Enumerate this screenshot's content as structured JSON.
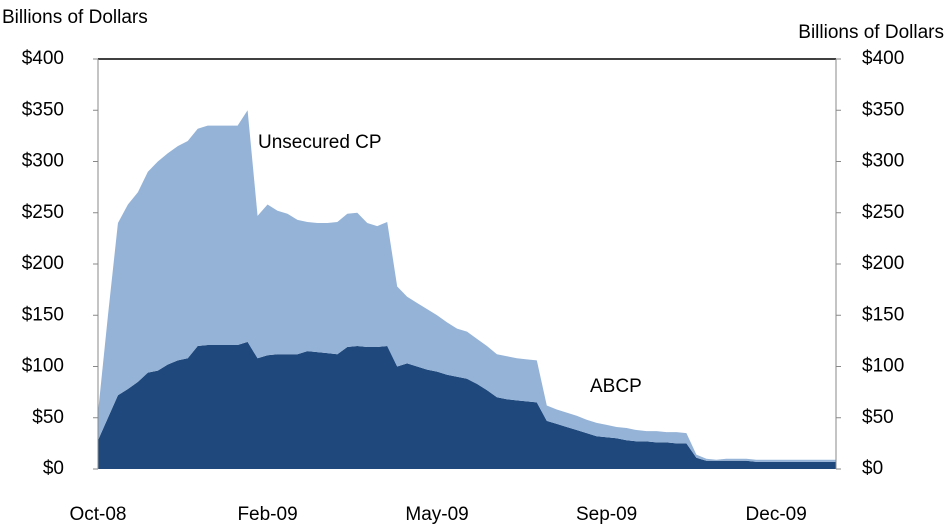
{
  "chart_data": {
    "type": "stacked-area",
    "ylabel": "Billions of Dollars",
    "y2label": "Billions of Dollars",
    "categories": [
      "Oct-08",
      null,
      null,
      null,
      null,
      null,
      null,
      null,
      null,
      null,
      null,
      null,
      null,
      null,
      null,
      null,
      null,
      "Feb-09",
      null,
      null,
      null,
      null,
      null,
      null,
      null,
      null,
      null,
      null,
      null,
      null,
      null,
      null,
      null,
      null,
      "May-09",
      null,
      null,
      null,
      null,
      null,
      null,
      null,
      null,
      null,
      null,
      null,
      null,
      null,
      null,
      null,
      null,
      "Sep-09",
      null,
      null,
      null,
      null,
      null,
      null,
      null,
      null,
      null,
      null,
      null,
      null,
      null,
      null,
      null,
      null,
      "Dec-09",
      null,
      null,
      null,
      null,
      null,
      null
    ],
    "series": [
      {
        "name": "ABCP",
        "color": "#1f497d",
        "label_color": "#1f497d",
        "values": [
          28,
          50,
          72,
          78,
          85,
          94,
          96,
          102,
          106,
          108,
          120,
          121,
          121,
          121,
          121,
          124,
          108,
          111,
          112,
          112,
          112,
          115,
          114,
          113,
          112,
          119,
          120,
          119,
          119,
          120,
          100,
          103,
          100,
          97,
          95,
          92,
          90,
          88,
          83,
          77,
          70,
          68,
          67,
          66,
          65,
          47,
          44,
          41,
          38,
          35,
          32,
          31,
          30,
          28,
          27,
          27,
          26,
          26,
          25,
          25,
          11,
          8,
          8,
          8,
          8,
          8,
          7,
          7,
          7,
          7,
          7,
          7,
          7,
          7,
          7
        ]
      },
      {
        "name": "Unsecured CP",
        "color": "#95b3d7",
        "label_color": "#95b3d7",
        "values": [
          27,
          100,
          168,
          180,
          185,
          196,
          204,
          206,
          209,
          212,
          212,
          214,
          214,
          214,
          214,
          226,
          139,
          147,
          140,
          137,
          131,
          126,
          126,
          127,
          129,
          130,
          130,
          121,
          118,
          121,
          78,
          65,
          62,
          59,
          55,
          51,
          47,
          46,
          44,
          43,
          42,
          42,
          41,
          41,
          41,
          15,
          14,
          14,
          14,
          13,
          13,
          12,
          11,
          12,
          11,
          10,
          11,
          10,
          11,
          10,
          3,
          2,
          1,
          2,
          2,
          2,
          2,
          2,
          2,
          2,
          2,
          2,
          2,
          2,
          2
        ]
      }
    ],
    "ylim": [
      0,
      400
    ],
    "yticks": [
      {
        "value": 0,
        "label": "$0"
      },
      {
        "value": 50,
        "label": "$50"
      },
      {
        "value": 100,
        "label": "$100"
      },
      {
        "value": 150,
        "label": "$150"
      },
      {
        "value": 200,
        "label": "$200"
      },
      {
        "value": 250,
        "label": "$250"
      },
      {
        "value": 300,
        "label": "$300"
      },
      {
        "value": 350,
        "label": "$350"
      },
      {
        "value": 400,
        "label": "$400"
      }
    ],
    "y2lim": [
      0,
      400
    ],
    "y2ticks": [
      {
        "value": 0,
        "label": "$0"
      },
      {
        "value": 50,
        "label": "$50"
      },
      {
        "value": 100,
        "label": "$100"
      },
      {
        "value": 150,
        "label": "$150"
      },
      {
        "value": 200,
        "label": "$200"
      },
      {
        "value": 250,
        "label": "$250"
      },
      {
        "value": 300,
        "label": "$300"
      },
      {
        "value": 350,
        "label": "$350"
      },
      {
        "value": 400,
        "label": "$400"
      }
    ],
    "grid": false
  }
}
